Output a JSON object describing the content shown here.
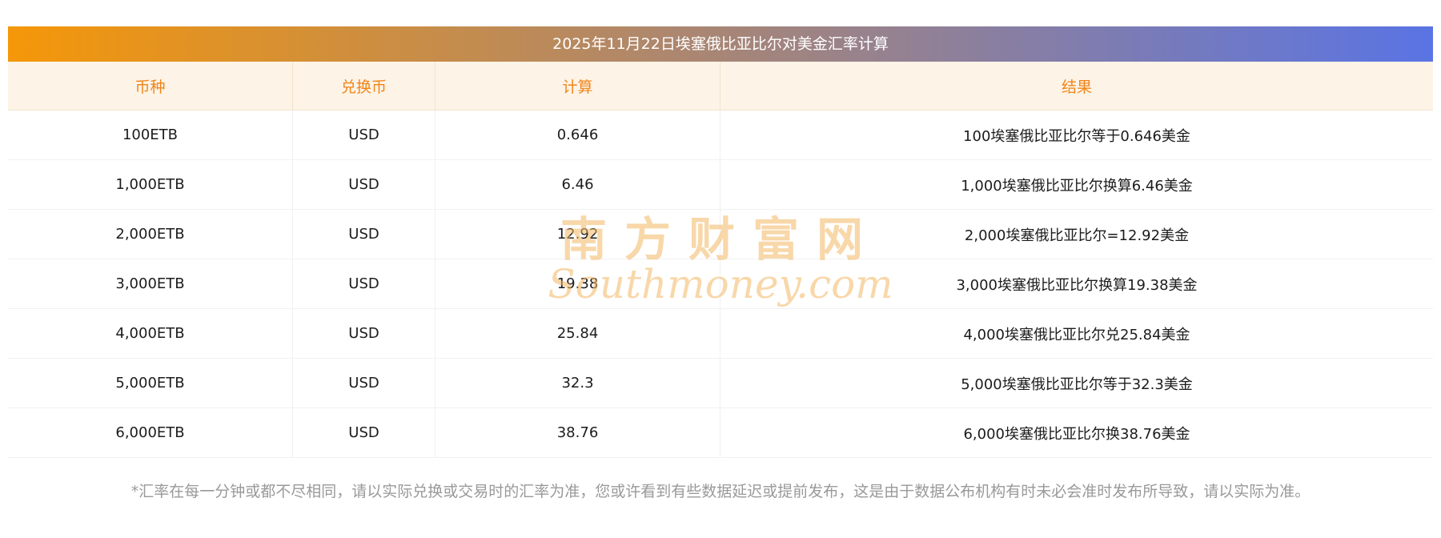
{
  "title": "2025年11月22日埃塞俄比亚比尔对美金汇率计算",
  "colors": {
    "title_gradient_start": "#f59708",
    "title_gradient_end": "#5a74e4",
    "header_background": "#fdf3e6",
    "header_text": "#f08519",
    "body_text": "#1c1c1c",
    "footnote_text": "#999999",
    "watermark": "#f3b763"
  },
  "table": {
    "headers": [
      "币种",
      "兑换币",
      "计算",
      "结果"
    ],
    "rows": [
      [
        "100ETB",
        "USD",
        "0.646",
        "100埃塞俄比亚比尔等于0.646美金"
      ],
      [
        "1,000ETB",
        "USD",
        "6.46",
        "1,000埃塞俄比亚比尔换算6.46美金"
      ],
      [
        "2,000ETB",
        "USD",
        "12.92",
        "2,000埃塞俄比亚比尔=12.92美金"
      ],
      [
        "3,000ETB",
        "USD",
        "19.38",
        "3,000埃塞俄比亚比尔换算19.38美金"
      ],
      [
        "4,000ETB",
        "USD",
        "25.84",
        "4,000埃塞俄比亚比尔兑25.84美金"
      ],
      [
        "5,000ETB",
        "USD",
        "32.3",
        "5,000埃塞俄比亚比尔等于32.3美金"
      ],
      [
        "6,000ETB",
        "USD",
        "38.76",
        "6,000埃塞俄比亚比尔换38.76美金"
      ]
    ]
  },
  "watermark": {
    "cn": "南方财富网",
    "en": "Southmoney.com"
  },
  "footnote": "*汇率在每一分钟或都不尽相同，请以实际兑换或交易时的汇率为准，您或许看到有些数据延迟或提前发布，这是由于数据公布机构有时未必会准时发布所导致，请以实际为准。"
}
